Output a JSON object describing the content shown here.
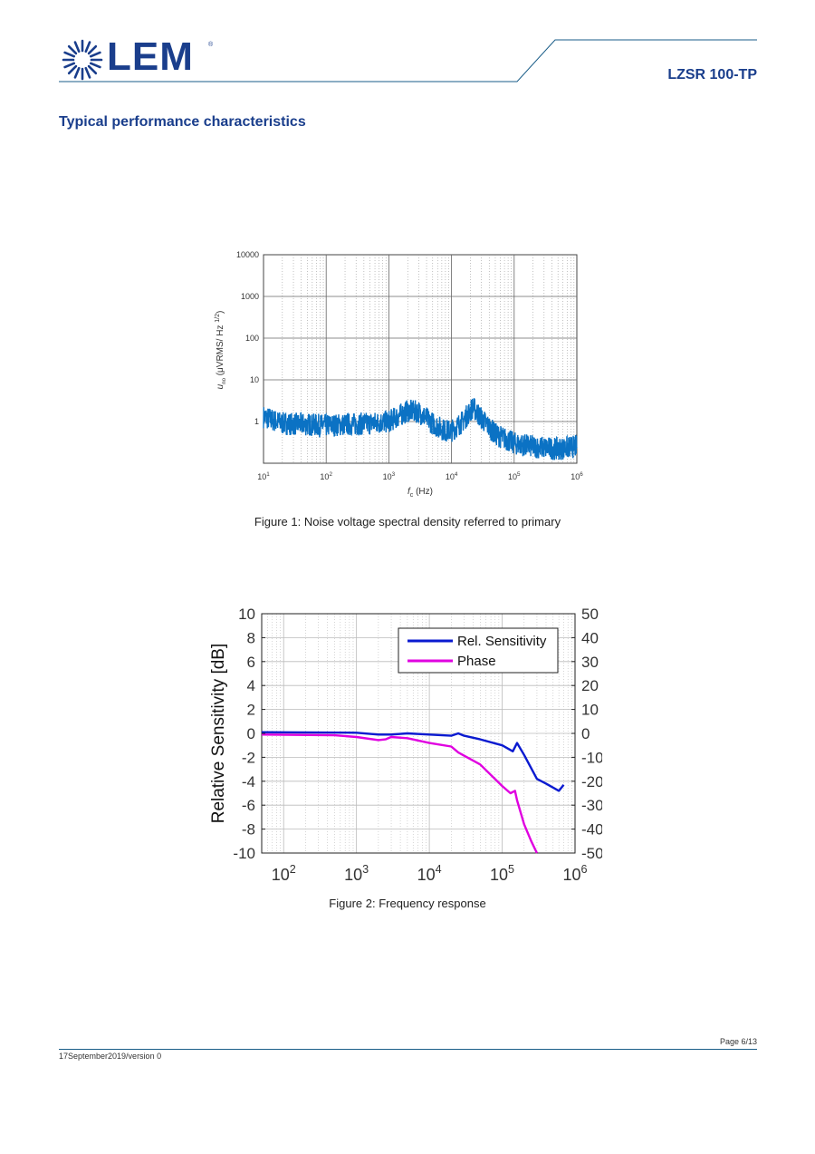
{
  "header": {
    "logo_text": "LEM",
    "logo_registered": "®",
    "product_code": "LZSR 100-TP"
  },
  "section_title": "Typical performance characteristics",
  "figure1": {
    "caption": "Figure 1: Noise voltage spectral density referred to primary",
    "chart_data": {
      "type": "line",
      "ylabel": "u_no (μVRMS/ Hz 1/2)",
      "xlabel": "f_c (Hz)",
      "x_scale": "log",
      "y_scale": "log",
      "xlim": [
        10,
        1000000
      ],
      "ylim": [
        0.1,
        10000
      ],
      "x_ticks": [
        "10^1",
        "10^2",
        "10^3",
        "10^4",
        "10^5",
        "10^6"
      ],
      "y_ticks": [
        "10000",
        "1000",
        "100",
        "10",
        "1"
      ],
      "grid": true,
      "series": [
        {
          "color": "#0b72c4",
          "x": [
            10,
            20,
            50,
            100,
            200,
            500,
            1000,
            2000,
            3000,
            5000,
            8000,
            10000,
            15000,
            22000,
            30000,
            50000,
            100000,
            200000,
            500000,
            900000
          ],
          "y": [
            1.3,
            0.9,
            0.85,
            0.8,
            0.85,
            0.9,
            1.0,
            1.8,
            1.7,
            0.9,
            0.6,
            0.6,
            1.0,
            2.2,
            1.2,
            0.5,
            0.3,
            0.25,
            0.22,
            0.25
          ]
        }
      ]
    }
  },
  "figure2": {
    "caption": "Figure 2: Frequency response",
    "chart_data": {
      "type": "line",
      "ylabel": "Relative Sensitivity [dB]",
      "x_scale": "log",
      "xlim": [
        50,
        1000000
      ],
      "ylim": [
        -10,
        10
      ],
      "y2lim": [
        -50,
        50
      ],
      "x_ticks": [
        "10^2",
        "10^3",
        "10^4",
        "10^5",
        "10^6"
      ],
      "y_ticks": [
        "10",
        "8",
        "6",
        "4",
        "2",
        "0",
        "-2",
        "-4",
        "-6",
        "-8",
        "-10"
      ],
      "y2_ticks": [
        "50",
        "40",
        "30",
        "20",
        "10",
        "0",
        "-10",
        "-20",
        "-30",
        "-40",
        "-50"
      ],
      "legend_position": "top-right",
      "grid": true,
      "series": [
        {
          "name": "Rel. Sensitivity",
          "axis": "left",
          "color": "#0a1ad0",
          "x": [
            50,
            1000,
            2000,
            3000,
            5000,
            10000,
            20000,
            25000,
            30000,
            50000,
            100000,
            140000,
            160000,
            200000,
            300000,
            400000,
            600000,
            700000
          ],
          "y": [
            0.1,
            0.05,
            -0.1,
            -0.1,
            0.0,
            -0.1,
            -0.2,
            0.0,
            -0.2,
            -0.5,
            -1.0,
            -1.5,
            -0.8,
            -1.8,
            -3.8,
            -4.2,
            -4.8,
            -4.3
          ]
        },
        {
          "name": "Phase",
          "axis": "right",
          "color": "#e000e0",
          "x": [
            50,
            500,
            1000,
            2000,
            2500,
            3000,
            5000,
            10000,
            20000,
            25000,
            50000,
            100000,
            130000,
            150000,
            160000,
            200000,
            250000,
            300000
          ],
          "y": [
            -0.5,
            -0.8,
            -1.5,
            -2.8,
            -2.5,
            -1.5,
            -2.0,
            -4.0,
            -5.5,
            -8.0,
            -13.0,
            -22.0,
            -25.0,
            -24.0,
            -28.0,
            -38.0,
            -45.0,
            -50.0
          ]
        }
      ]
    }
  },
  "footer": {
    "page_number": "Page 6/13",
    "date_version": "17September2019/version 0"
  }
}
